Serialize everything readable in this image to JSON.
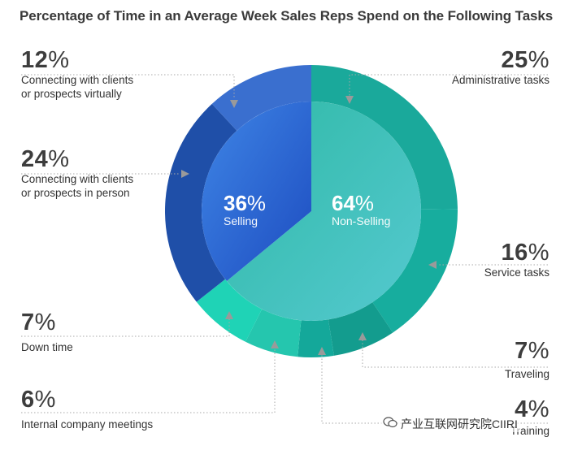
{
  "title": "Percentage of Time in an Average Week Sales Reps Spend on the Following Tasks",
  "watermark": "产业互联网研究院CIIRI",
  "watermark_icon": "wechat-icon",
  "colors": {
    "selling_inner": "#2f6fd8",
    "non_selling_inner": "#3cc0b4",
    "connect_virtual": "#3a6fcf",
    "connect_person": "#1f4fa8",
    "down_time": "#1fd3b6",
    "meetings": "#25c6ae",
    "training": "#14a89a",
    "traveling": "#139c8e",
    "service": "#17ad9e",
    "admin": "#1aa99b",
    "guide_line": "#a8a8a8",
    "arrow": "#9a9a9a"
  },
  "chart_data": {
    "type": "pie",
    "title": "Percentage of Time in an Average Week Sales Reps Spend on the Following Tasks",
    "inner": [
      {
        "label": "Selling",
        "value": 36,
        "display": "36%"
      },
      {
        "label": "Non-Selling",
        "value": 64,
        "display": "64%"
      }
    ],
    "outer": [
      {
        "label": "Administrative tasks",
        "value": 25,
        "display": "25%",
        "group": "Non-Selling"
      },
      {
        "label": "Service tasks",
        "value": 16,
        "display": "16%",
        "group": "Non-Selling"
      },
      {
        "label": "Traveling",
        "value": 7,
        "display": "7%",
        "group": "Non-Selling"
      },
      {
        "label": "Training",
        "value": 4,
        "display": "4%",
        "group": "Non-Selling"
      },
      {
        "label": "Internal company meetings",
        "value": 6,
        "display": "6%",
        "group": "Non-Selling"
      },
      {
        "label": "Down time",
        "value": 7,
        "display": "7%",
        "group": "Non-Selling"
      },
      {
        "label": "Connecting with clients or prospects in person",
        "value": 24,
        "display": "24%",
        "group": "Selling"
      },
      {
        "label": "Connecting with clients or prospects virtually",
        "value": 12,
        "display": "12%",
        "group": "Selling"
      }
    ]
  },
  "labels": {
    "admin": {
      "num": "25",
      "sign": "%",
      "line1": "Administrative tasks",
      "line2": ""
    },
    "service": {
      "num": "16",
      "sign": "%",
      "line1": "Service tasks",
      "line2": ""
    },
    "traveling": {
      "num": "7",
      "sign": "%",
      "line1": "Traveling",
      "line2": ""
    },
    "training": {
      "num": "4",
      "sign": "%",
      "line1": "Training",
      "line2": ""
    },
    "meetings": {
      "num": "6",
      "sign": "%",
      "line1": "Internal company meetings",
      "line2": ""
    },
    "down": {
      "num": "7",
      "sign": "%",
      "line1": "Down time",
      "line2": ""
    },
    "person": {
      "num": "24",
      "sign": "%",
      "line1": "Connecting with clients",
      "line2": "or prospects in person"
    },
    "virtual": {
      "num": "12",
      "sign": "%",
      "line1": "Connecting with clients",
      "line2": "or prospects virtually"
    },
    "selling": {
      "num": "36",
      "sign": "%",
      "line1": "Selling"
    },
    "non_selling": {
      "num": "64",
      "sign": "%",
      "line1": "Non-Selling"
    }
  }
}
